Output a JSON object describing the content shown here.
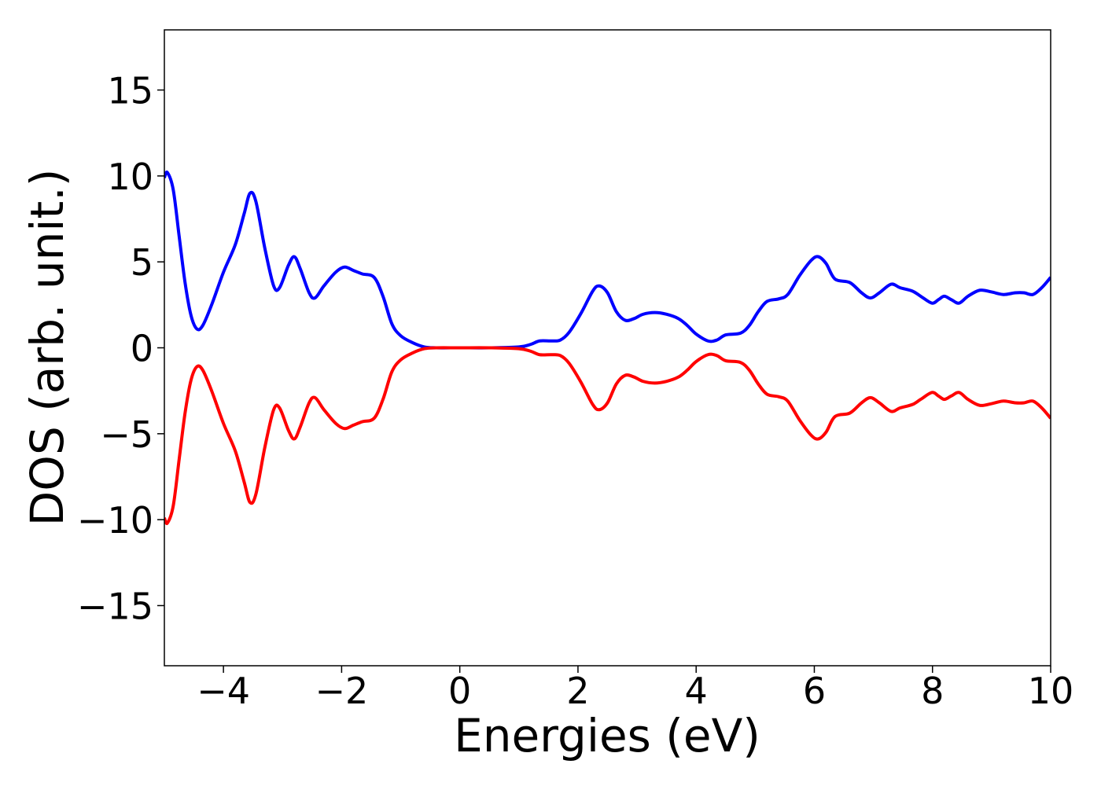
{
  "chart_data": {
    "type": "line",
    "xlabel": "Energies (eV)",
    "ylabel": "DOS (arb. unit.)",
    "x": [
      -5,
      -4.95,
      -4.85,
      -4.75,
      -4.65,
      -4.55,
      -4.45,
      -4.35,
      -4.2,
      -4.0,
      -3.8,
      -3.65,
      -3.55,
      -3.45,
      -3.3,
      -3.15,
      -3.05,
      -2.9,
      -2.8,
      -2.7,
      -2.55,
      -2.45,
      -2.3,
      -2.1,
      -1.95,
      -1.8,
      -1.65,
      -1.45,
      -1.3,
      -1.15,
      -1.0,
      -0.8,
      -0.6,
      -0.4,
      0,
      0.5,
      1.0,
      1.2,
      1.35,
      1.55,
      1.7,
      1.85,
      2.05,
      2.25,
      2.36,
      2.5,
      2.65,
      2.8,
      2.95,
      3.1,
      3.3,
      3.5,
      3.7,
      3.85,
      4.0,
      4.2,
      4.35,
      4.5,
      4.75,
      4.9,
      5.05,
      5.2,
      5.4,
      5.55,
      5.75,
      5.95,
      6.07,
      6.2,
      6.35,
      6.6,
      6.8,
      6.95,
      7.1,
      7.3,
      7.45,
      7.66,
      7.8,
      7.99,
      8.1,
      8.2,
      8.32,
      8.45,
      8.6,
      8.8,
      9.0,
      9.2,
      9.4,
      9.55,
      9.7,
      9.85,
      10
    ],
    "series": [
      {
        "color": "#0000ff",
        "values": [
          9.9,
          10.2,
          9.2,
          6.5,
          3.8,
          1.9,
          1.1,
          1.3,
          2.5,
          4.4,
          6.0,
          7.8,
          9.0,
          8.5,
          5.8,
          3.6,
          3.5,
          4.8,
          5.3,
          4.6,
          3.2,
          2.9,
          3.6,
          4.4,
          4.7,
          4.5,
          4.3,
          4.1,
          3.0,
          1.4,
          0.7,
          0.3,
          0.05,
          0,
          0,
          0,
          0.05,
          0.2,
          0.4,
          0.4,
          0.45,
          0.9,
          2.0,
          3.3,
          3.6,
          3.2,
          2.1,
          1.6,
          1.7,
          1.95,
          2.05,
          1.95,
          1.7,
          1.3,
          0.8,
          0.4,
          0.45,
          0.75,
          0.85,
          1.3,
          2.1,
          2.7,
          2.85,
          3.1,
          4.2,
          5.1,
          5.3,
          4.9,
          4.0,
          3.8,
          3.2,
          2.9,
          3.2,
          3.7,
          3.5,
          3.3,
          3.0,
          2.6,
          2.8,
          3.0,
          2.8,
          2.6,
          3.0,
          3.35,
          3.25,
          3.1,
          3.2,
          3.2,
          3.1,
          3.5,
          4.1
        ]
      },
      {
        "color": "#ff0000",
        "values": [
          -9.9,
          -10.2,
          -9.2,
          -6.5,
          -3.8,
          -1.9,
          -1.1,
          -1.3,
          -2.5,
          -4.4,
          -6.0,
          -7.8,
          -9.0,
          -8.5,
          -5.8,
          -3.6,
          -3.5,
          -4.8,
          -5.3,
          -4.6,
          -3.2,
          -2.9,
          -3.6,
          -4.4,
          -4.7,
          -4.5,
          -4.3,
          -4.1,
          -3.0,
          -1.4,
          -0.7,
          -0.3,
          -0.05,
          0,
          0,
          0,
          -0.05,
          -0.2,
          -0.4,
          -0.4,
          -0.45,
          -0.9,
          -2.0,
          -3.3,
          -3.6,
          -3.2,
          -2.1,
          -1.6,
          -1.7,
          -1.95,
          -2.05,
          -1.95,
          -1.7,
          -1.3,
          -0.8,
          -0.4,
          -0.45,
          -0.75,
          -0.85,
          -1.3,
          -2.1,
          -2.7,
          -2.85,
          -3.1,
          -4.2,
          -5.1,
          -5.3,
          -4.9,
          -4.0,
          -3.8,
          -3.2,
          -2.9,
          -3.2,
          -3.7,
          -3.5,
          -3.3,
          -3.0,
          -2.6,
          -2.8,
          -3.0,
          -2.8,
          -2.6,
          -3.0,
          -3.35,
          -3.25,
          -3.1,
          -3.2,
          -3.2,
          -3.1,
          -3.5,
          -4.1
        ]
      }
    ],
    "xlim": [
      -5,
      10
    ],
    "xticks": [
      {
        "value": -4,
        "label": "−4"
      },
      {
        "value": -2,
        "label": "−2"
      },
      0,
      2,
      4,
      6,
      8,
      10
    ],
    "ylim": [
      -18.5,
      18.5
    ],
    "yticks": [
      {
        "value": -15,
        "label": "−15"
      },
      {
        "value": -10,
        "label": "−10"
      },
      {
        "value": -5,
        "label": "−5"
      },
      0,
      5,
      10,
      15
    ],
    "grid": false
  }
}
